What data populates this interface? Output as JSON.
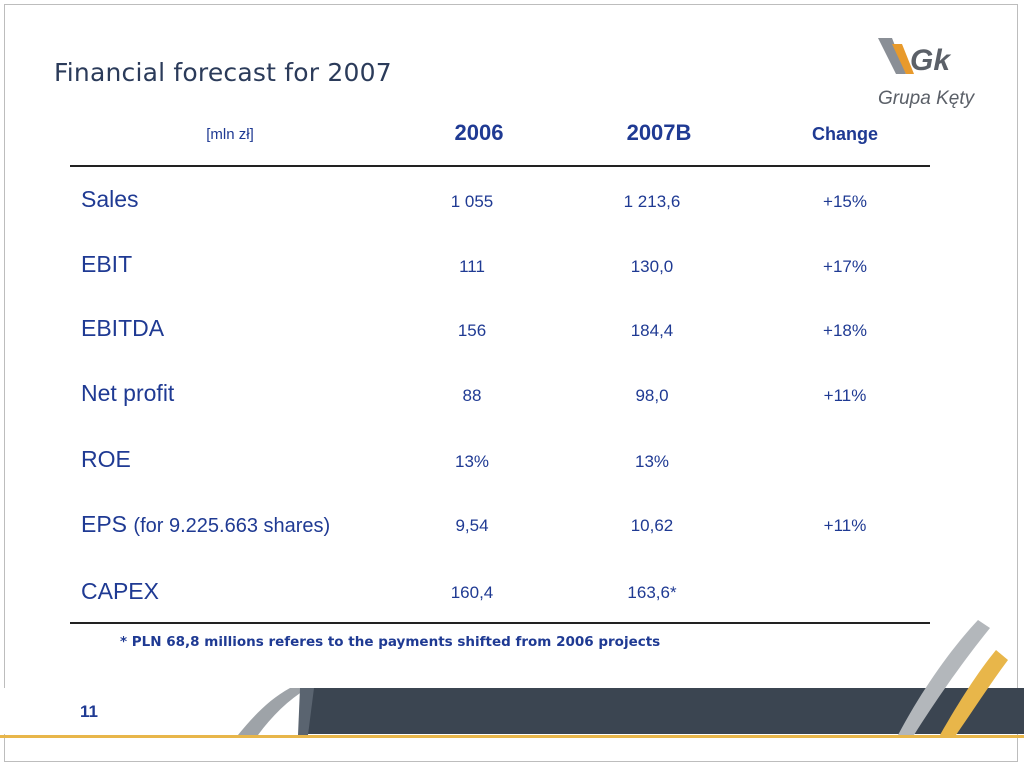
{
  "slide": {
    "title": "Financial forecast for 2007",
    "page_number": "11",
    "footnote": "* PLN 68,8 millions referes to the payments shifted from 2006 projects"
  },
  "logo": {
    "mark_text": "Gk",
    "name_text": "Grupa Kęty"
  },
  "table": {
    "unit_label": "[mln zł]",
    "headers": [
      "2006",
      "2007B",
      "Change"
    ],
    "rows": [
      {
        "label": "Sales",
        "sub": "",
        "v2006": "1 055",
        "v2007": "1 213,6",
        "change": "+15%"
      },
      {
        "label": "EBIT",
        "sub": "",
        "v2006": "111",
        "v2007": "130,0",
        "change": "+17%"
      },
      {
        "label": "EBITDA",
        "sub": "",
        "v2006": "156",
        "v2007": "184,4",
        "change": "+18%"
      },
      {
        "label": "Net profit",
        "sub": "",
        "v2006": "88",
        "v2007": "98,0",
        "change": "+11%"
      },
      {
        "label": "ROE",
        "sub": "",
        "v2006": "13%",
        "v2007": "13%",
        "change": ""
      },
      {
        "label": "EPS",
        "sub": "(for 9.225.663 shares)",
        "v2006": "9,54",
        "v2007": "10,62",
        "change": "+11%"
      },
      {
        "label": "CAPEX",
        "sub": "",
        "v2006": "160,4",
        "v2007": "163,6*",
        "change": ""
      }
    ]
  },
  "colors": {
    "text_blue": "#1f3a93",
    "title": "#2b3b5a",
    "band": "#3b4551",
    "gold": "#e8b64a",
    "logo_orange": "#e89a2c",
    "logo_gray": "#8a8f96"
  }
}
